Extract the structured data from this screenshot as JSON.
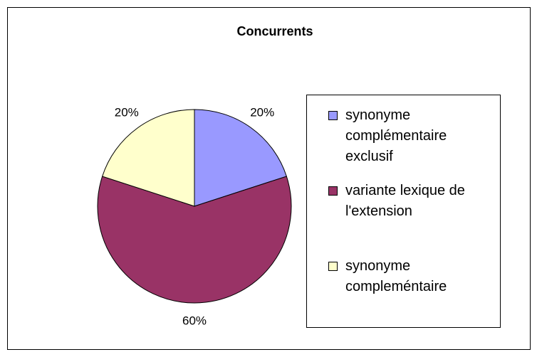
{
  "chart_data": {
    "type": "pie",
    "title": "Concurrents",
    "categories": [
      "synonyme complémentaire exclusif",
      "variante lexique de l'extension",
      "synonyme compleméntaire"
    ],
    "values": [
      20,
      60,
      20
    ],
    "value_labels": [
      "20%",
      "60%",
      "20%"
    ],
    "colors": [
      "#9999ff",
      "#993366",
      "#ffffcc"
    ],
    "legend": "right"
  }
}
